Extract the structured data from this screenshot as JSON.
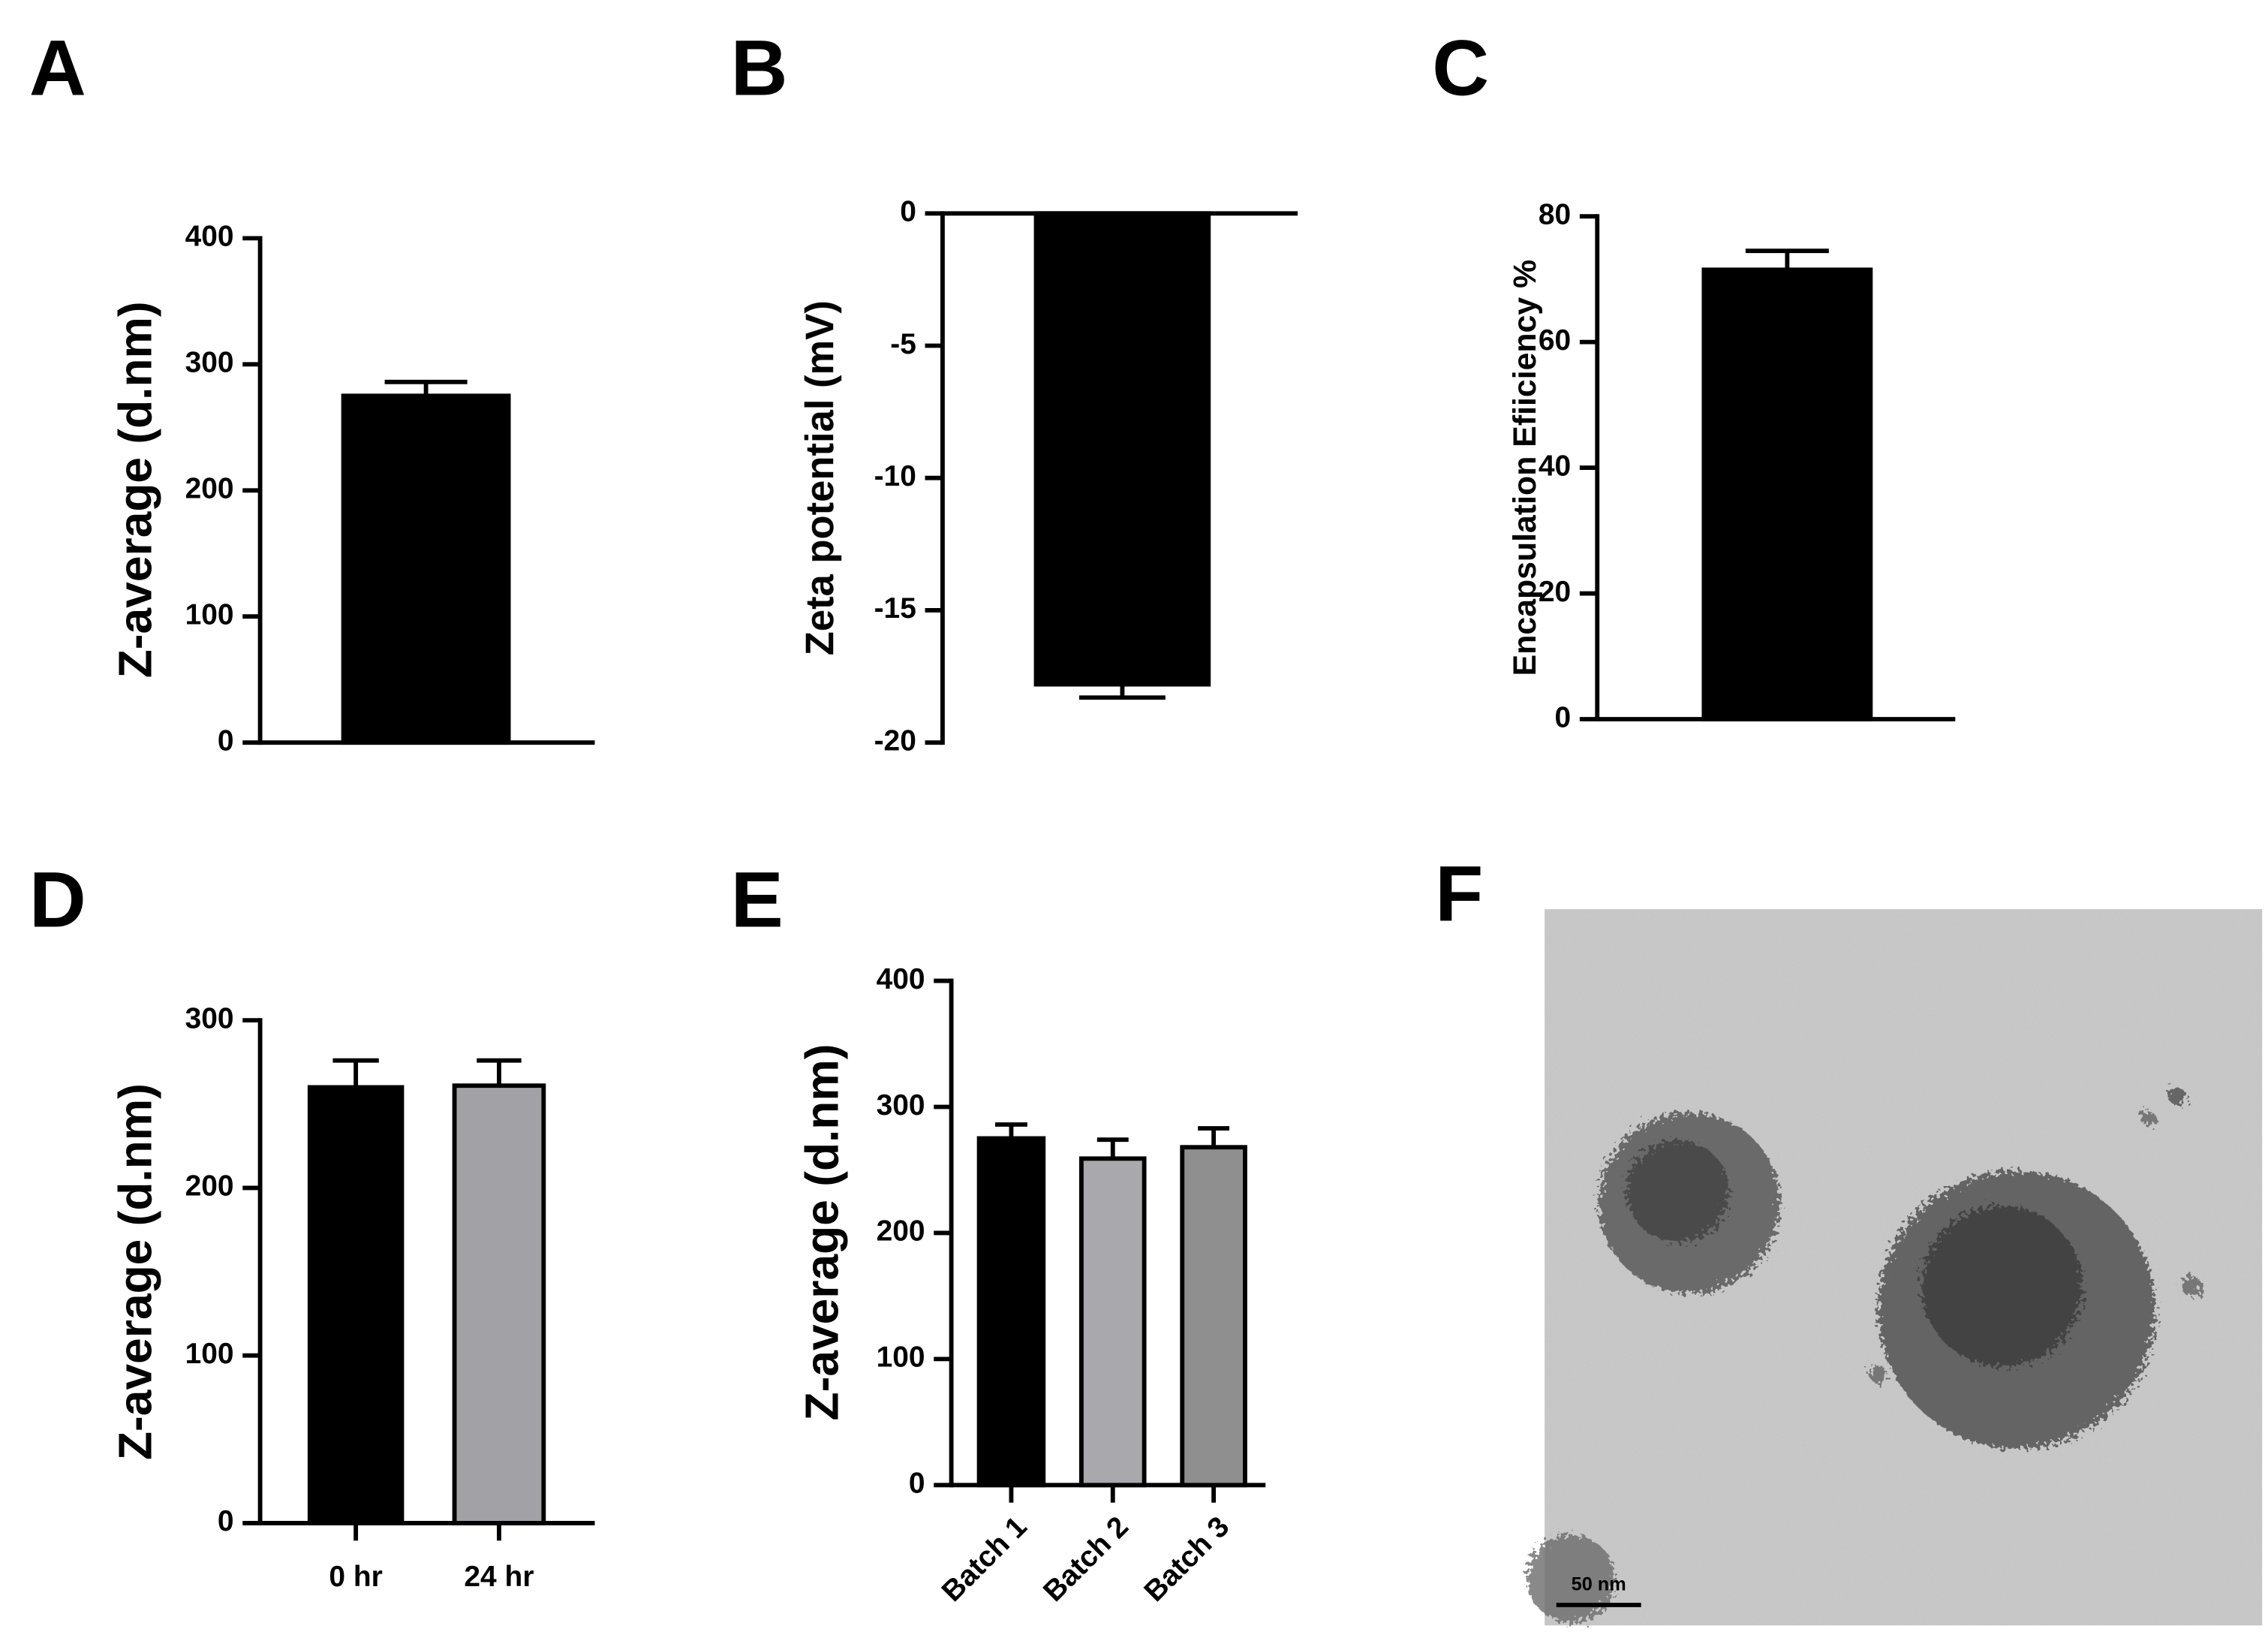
{
  "chart_data": [
    {
      "type": "bar",
      "panel": "A",
      "ylabel": "Z-average (d.nm)",
      "categories": [
        null
      ],
      "values": [
        275
      ],
      "errors": [
        11
      ],
      "colors": [
        "#000000"
      ],
      "ylim": [
        0,
        400
      ],
      "yticks": [
        0,
        100,
        200,
        300,
        400
      ]
    },
    {
      "type": "bar",
      "panel": "B",
      "ylabel": "Zeta potential (mV)",
      "categories": [
        null
      ],
      "values": [
        -17.8
      ],
      "errors": [
        0.5
      ],
      "colors": [
        "#000000"
      ],
      "ylim": [
        -20,
        0
      ],
      "yticks": [
        0,
        -5,
        -10,
        -15,
        -20
      ]
    },
    {
      "type": "bar",
      "panel": "C",
      "ylabel": "Encapsulation  Efiiciency %",
      "categories": [
        null
      ],
      "values": [
        71.5
      ],
      "errors": [
        3
      ],
      "colors": [
        "#000000"
      ],
      "ylim": [
        0,
        80
      ],
      "yticks": [
        0,
        20,
        40,
        60,
        80
      ]
    },
    {
      "type": "bar",
      "panel": "D",
      "ylabel": "Z-average (d.nm)",
      "categories": [
        "0 hr",
        "24 hr"
      ],
      "values": [
        260,
        261
      ],
      "errors": [
        16,
        15
      ],
      "colors": [
        "#000000",
        "#a2a2a6"
      ],
      "ylim": [
        0,
        300
      ],
      "yticks": [
        0,
        100,
        200,
        300
      ]
    },
    {
      "type": "bar",
      "panel": "E",
      "ylabel": "Z-average (d.nm)",
      "categories": [
        "Batch 1",
        "Batch 2",
        "Batch 3"
      ],
      "values": [
        275,
        259,
        268
      ],
      "errors": [
        11,
        15,
        15
      ],
      "colors": [
        "#000000",
        "#a9a9ad",
        "#8f8f8f"
      ],
      "ylim": [
        0,
        400
      ],
      "yticks": [
        0,
        100,
        200,
        300,
        400
      ]
    }
  ],
  "image_panel": {
    "panel": "F",
    "scale_bar_label": "50 nm"
  }
}
